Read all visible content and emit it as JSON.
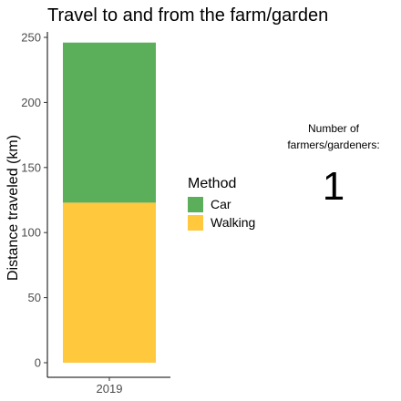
{
  "chart_data": {
    "type": "bar",
    "stacked": true,
    "title": "Travel to and from the farm/garden",
    "xlabel": "",
    "ylabel": "Distance traveled (km)",
    "categories": [
      "2019"
    ],
    "ylim": [
      0,
      250
    ],
    "yticks": [
      "0",
      "50",
      "100",
      "150",
      "200",
      "250"
    ],
    "series": [
      {
        "name": "Walking",
        "values": [
          123
        ],
        "color": "#FFC83D"
      },
      {
        "name": "Car",
        "values": [
          123
        ],
        "color": "#5BAF5B"
      }
    ],
    "legend": {
      "title": "Method",
      "position": "right",
      "items": [
        {
          "label": "Car",
          "color": "#5BAF5B"
        },
        {
          "label": "Walking",
          "color": "#FFC83D"
        }
      ]
    },
    "grid": false
  },
  "annotation": {
    "label_line1": "Number of",
    "label_line2": "farmers/gardeners:",
    "value": "1"
  }
}
